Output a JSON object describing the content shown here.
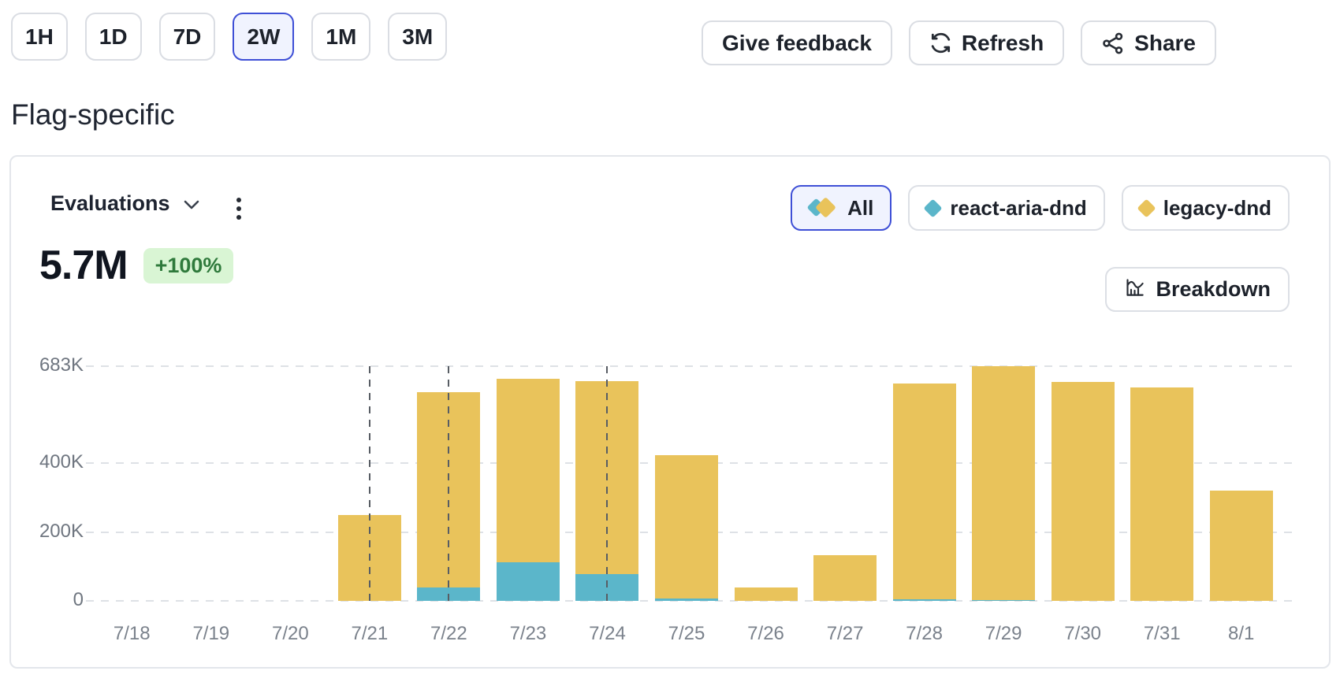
{
  "toolbar": {
    "time_ranges": [
      {
        "label": "1H",
        "selected": false
      },
      {
        "label": "1D",
        "selected": false
      },
      {
        "label": "7D",
        "selected": false
      },
      {
        "label": "2W",
        "selected": true
      },
      {
        "label": "1M",
        "selected": false
      },
      {
        "label": "3M",
        "selected": false
      }
    ],
    "actions": [
      {
        "label": "Give feedback",
        "icon": null
      },
      {
        "label": "Refresh",
        "icon": "refresh-icon"
      },
      {
        "label": "Share",
        "icon": "share-icon"
      }
    ]
  },
  "page": {
    "title": "Flag-specific"
  },
  "card": {
    "metric_selector": {
      "label": "Evaluations",
      "icons": [
        "chevron-down-icon",
        "kebab-menu-icon"
      ]
    },
    "legend": [
      {
        "label": "All",
        "selected": true,
        "colors": [
          "#5bb6ca",
          "#e9c35b"
        ],
        "icon": "all-diamonds-icon"
      },
      {
        "label": "react-aria-dnd",
        "selected": false,
        "colors": [
          "#5bb6ca"
        ],
        "icon": "diamond-icon"
      },
      {
        "label": "legacy-dnd",
        "selected": false,
        "colors": [
          "#e9c35b"
        ],
        "icon": "diamond-icon"
      }
    ],
    "total": {
      "value": "5.7M",
      "delta": "+100%"
    },
    "breakdown": {
      "label": "Breakdown",
      "icon": "chart-breakdown-icon"
    }
  },
  "chart_data": {
    "type": "bar",
    "stacked": true,
    "units": "thousands of evaluations",
    "categories": [
      "7/18",
      "7/19",
      "7/20",
      "7/21",
      "7/22",
      "7/23",
      "7/24",
      "7/25",
      "7/26",
      "7/27",
      "7/28",
      "7/29",
      "7/30",
      "7/31",
      "8/1"
    ],
    "series": [
      {
        "name": "react-aria-dnd",
        "color": "#5bb6ca",
        "values": [
          0,
          0,
          0,
          0,
          40,
          112,
          78,
          6,
          0,
          0,
          4,
          3,
          0,
          0,
          0
        ]
      },
      {
        "name": "legacy-dnd",
        "color": "#e9c35b",
        "values": [
          0,
          0,
          0,
          250,
          568,
          534,
          561,
          419,
          40,
          133,
          628,
          680,
          637,
          621,
          320
        ]
      }
    ],
    "totals": [
      0,
      0,
      0,
      250,
      608,
      646,
      639,
      425,
      40,
      133,
      632,
      683,
      637,
      621,
      320
    ],
    "title": "Evaluations",
    "xlabel": "",
    "ylabel": "",
    "ymax": 683,
    "yticks": [
      {
        "value": 683,
        "label": "683K"
      },
      {
        "value": 400,
        "label": "400K"
      },
      {
        "value": 200,
        "label": "200K"
      },
      {
        "value": 0,
        "label": "0"
      }
    ],
    "grid": "dashed-horizontal",
    "legend_position": "top-right",
    "event_lines": [
      "7/21",
      "7/22",
      "7/24"
    ]
  }
}
